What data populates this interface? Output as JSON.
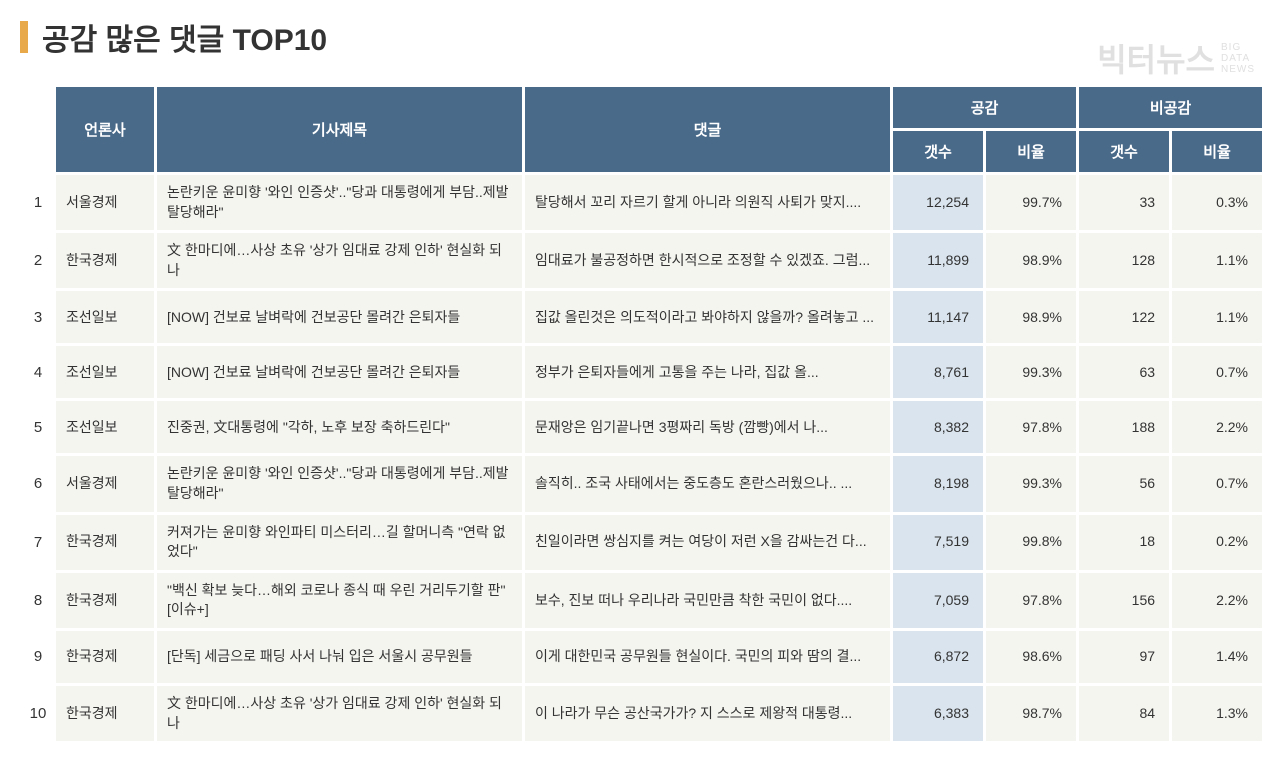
{
  "title": "공감 많은 댓글 TOP10",
  "watermark": {
    "main": "빅터뉴스",
    "sub1": "BIG",
    "sub2": "DATA",
    "sub3": "NEWS"
  },
  "colors": {
    "header_bg": "#4a6a8a",
    "header_text": "#ffffff",
    "cell_bg": "#f5f5f0",
    "highlight_bg": "#d9e4ee",
    "title_bar": "#e8a94a"
  },
  "headers": {
    "press": "언론사",
    "article": "기사제목",
    "comment": "댓글",
    "like_group": "공감",
    "dislike_group": "비공감",
    "count": "갯수",
    "ratio": "비율"
  },
  "rows": [
    {
      "rank": "1",
      "press": "서울경제",
      "article": "논란키운 윤미향 '와인 인증샷'..\"당과 대통령에게 부담..제발 탈당해라\"",
      "comment": "탈당해서 꼬리 자르기 할게 아니라 의원직 사퇴가 맞지....",
      "like_count": "12,254",
      "like_ratio": "99.7%",
      "dislike_count": "33",
      "dislike_ratio": "0.3%"
    },
    {
      "rank": "2",
      "press": "한국경제",
      "article": "文 한마디에…사상 초유 '상가 임대료 강제 인하' 현실화 되나",
      "comment": "임대료가 불공정하면 한시적으로 조정할 수 있겠죠. 그럼...",
      "like_count": "11,899",
      "like_ratio": "98.9%",
      "dislike_count": "128",
      "dislike_ratio": "1.1%"
    },
    {
      "rank": "3",
      "press": "조선일보",
      "article": "[NOW] 건보료 날벼락에 건보공단 몰려간 은퇴자들",
      "comment": "집값 올린것은 의도적이라고 봐야하지 않을까? 올려놓고 ...",
      "like_count": "11,147",
      "like_ratio": "98.9%",
      "dislike_count": "122",
      "dislike_ratio": "1.1%"
    },
    {
      "rank": "4",
      "press": "조선일보",
      "article": "[NOW] 건보료 날벼락에 건보공단 몰려간 은퇴자들",
      "comment": "정부가 은퇴자들에게 고통을 주는 나라, 집값 올...",
      "like_count": "8,761",
      "like_ratio": "99.3%",
      "dislike_count": "63",
      "dislike_ratio": "0.7%"
    },
    {
      "rank": "5",
      "press": "조선일보",
      "article": "진중권, 文대통령에 \"각하, 노후 보장 축하드린다\"",
      "comment": "문재앙은 임기끝나면 3평짜리 독방 (깜빵)에서 나...",
      "like_count": "8,382",
      "like_ratio": "97.8%",
      "dislike_count": "188",
      "dislike_ratio": "2.2%"
    },
    {
      "rank": "6",
      "press": "서울경제",
      "article": "논란키운 윤미향 '와인 인증샷'..\"당과 대통령에게 부담..제발 탈당해라\"",
      "comment": "솔직히.. 조국 사태에서는 중도층도 혼란스러웠으나.. ...",
      "like_count": "8,198",
      "like_ratio": "99.3%",
      "dislike_count": "56",
      "dislike_ratio": "0.7%"
    },
    {
      "rank": "7",
      "press": "한국경제",
      "article": "커져가는 윤미향 와인파티 미스터리…길 할머니측 \"연락 없었다\"",
      "comment": "친일이라면 쌍심지를 켜는 여당이 저런 X을 감싸는건 다...",
      "like_count": "7,519",
      "like_ratio": "99.8%",
      "dislike_count": "18",
      "dislike_ratio": "0.2%"
    },
    {
      "rank": "8",
      "press": "한국경제",
      "article": "\"백신 확보 늦다…해외 코로나 종식 때 우린 거리두기할 판\" [이슈+]",
      "comment": "보수, 진보 떠나 우리나라 국민만큼 착한 국민이 없다....",
      "like_count": "7,059",
      "like_ratio": "97.8%",
      "dislike_count": "156",
      "dislike_ratio": "2.2%"
    },
    {
      "rank": "9",
      "press": "한국경제",
      "article": "[단독] 세금으로 패딩 사서 나눠 입은 서울시 공무원들",
      "comment": "이게 대한민국 공무원들 현실이다. 국민의 피와 땀의 결...",
      "like_count": "6,872",
      "like_ratio": "98.6%",
      "dislike_count": "97",
      "dislike_ratio": "1.4%"
    },
    {
      "rank": "10",
      "press": "한국경제",
      "article": "文 한마디에…사상 초유 '상가 임대료 강제 인하' 현실화 되나",
      "comment": "이 나라가 무슨 공산국가가? 지 스스로 제왕적 대통령...",
      "like_count": "6,383",
      "like_ratio": "98.7%",
      "dislike_count": "84",
      "dislike_ratio": "1.3%"
    }
  ]
}
